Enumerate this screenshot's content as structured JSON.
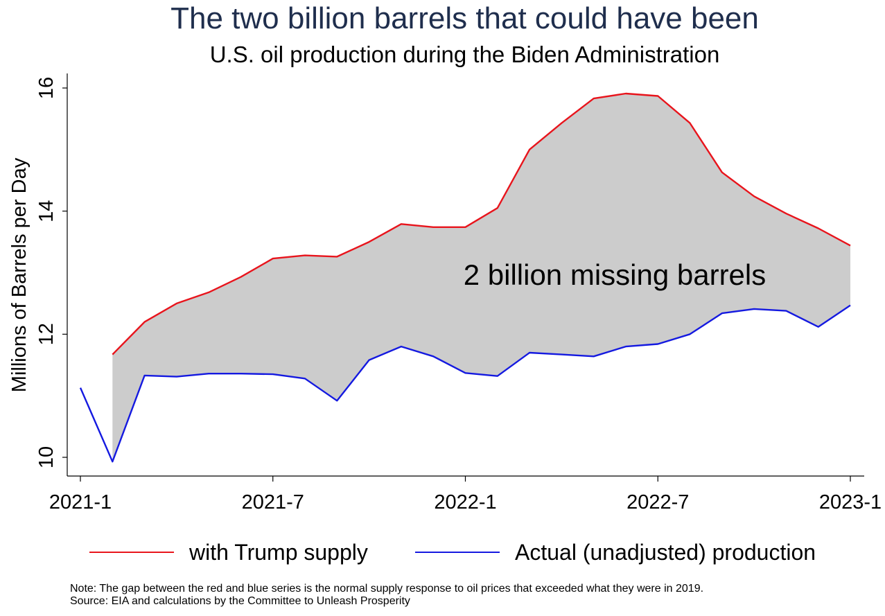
{
  "chart_data": {
    "type": "area",
    "title": "The two billion barrels that could have been",
    "subtitle": "U.S. oil production during the Biden Administration",
    "ylabel": "Millions of Barrels per Day",
    "xlabel": "",
    "ylim": [
      10,
      16
    ],
    "yticks": [
      "10",
      "12",
      "14",
      "16"
    ],
    "x_categories": [
      "2021-1",
      "2021-2",
      "2021-3",
      "2021-4",
      "2021-5",
      "2021-6",
      "2021-7",
      "2021-8",
      "2021-9",
      "2021-10",
      "2021-11",
      "2021-12",
      "2022-1",
      "2022-2",
      "2022-3",
      "2022-4",
      "2022-5",
      "2022-6",
      "2022-7",
      "2022-8",
      "2022-9",
      "2022-10",
      "2022-11",
      "2022-12",
      "2023-1"
    ],
    "xticks": [
      "2021-1",
      "2021-7",
      "2022-1",
      "2022-7",
      "2023-1"
    ],
    "grid": false,
    "legend_position": "bottom",
    "shaded_area_color": "#cccccc",
    "annotation": "2 billion missing barrels",
    "series": [
      {
        "name": "with Trump supply",
        "color": "#e8141c",
        "start_index": 1,
        "values": [
          11.67,
          12.2,
          12.5,
          12.68,
          12.93,
          13.23,
          13.28,
          13.26,
          13.5,
          13.79,
          13.74,
          13.74,
          14.05,
          15.0,
          15.43,
          15.83,
          15.91,
          15.87,
          15.43,
          14.63,
          14.24,
          13.96,
          13.72,
          13.44
        ]
      },
      {
        "name": "Actual (unadjusted) production",
        "color": "#1419e0",
        "start_index": 0,
        "values": [
          11.13,
          9.93,
          11.33,
          11.31,
          11.36,
          11.36,
          11.35,
          11.28,
          10.92,
          11.58,
          11.8,
          11.64,
          11.37,
          11.32,
          11.7,
          11.67,
          11.64,
          11.8,
          11.84,
          12.0,
          12.34,
          12.41,
          12.38,
          12.12,
          12.47
        ]
      }
    ]
  },
  "notes": {
    "note": "Note: The gap between the red and blue series is the normal supply response to oil prices that exceeded what they were in 2019.",
    "source": "Source: EIA and calculations by the Committee to Unleash Prosperity"
  }
}
